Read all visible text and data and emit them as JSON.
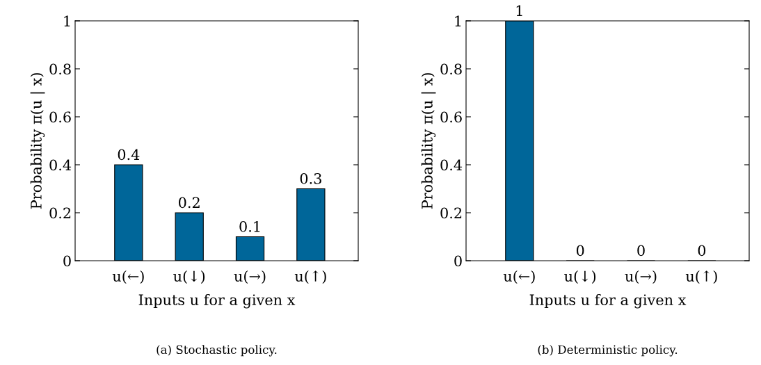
{
  "chart_data": [
    {
      "type": "bar",
      "categories": [
        "u(←)",
        "u(↓)",
        "u(→)",
        "u(↑)"
      ],
      "values": [
        0.4,
        0.2,
        0.1,
        0.3
      ],
      "color": "#006699",
      "ylim": [
        0,
        1
      ],
      "yticks": [
        0,
        0.2,
        0.4,
        0.6,
        0.8,
        1
      ],
      "ylabel": "Probability π(u | x)",
      "xlabel": "Inputs u for a given x",
      "data_labels": true,
      "grid": false,
      "legend": false,
      "annotations": [
        "(a) Stochastic policy."
      ]
    },
    {
      "type": "bar",
      "categories": [
        "u(←)",
        "u(↓)",
        "u(→)",
        "u(↑)"
      ],
      "values": [
        1,
        0,
        0,
        0
      ],
      "color": "#006699",
      "ylim": [
        0,
        1
      ],
      "yticks": [
        0,
        0.2,
        0.4,
        0.6,
        0.8,
        1
      ],
      "ylabel": "Probability π(u | x)",
      "xlabel": "Inputs u for a given x",
      "data_labels": true,
      "grid": false,
      "legend": false,
      "annotations": [
        "(b) Deterministic policy."
      ]
    }
  ]
}
